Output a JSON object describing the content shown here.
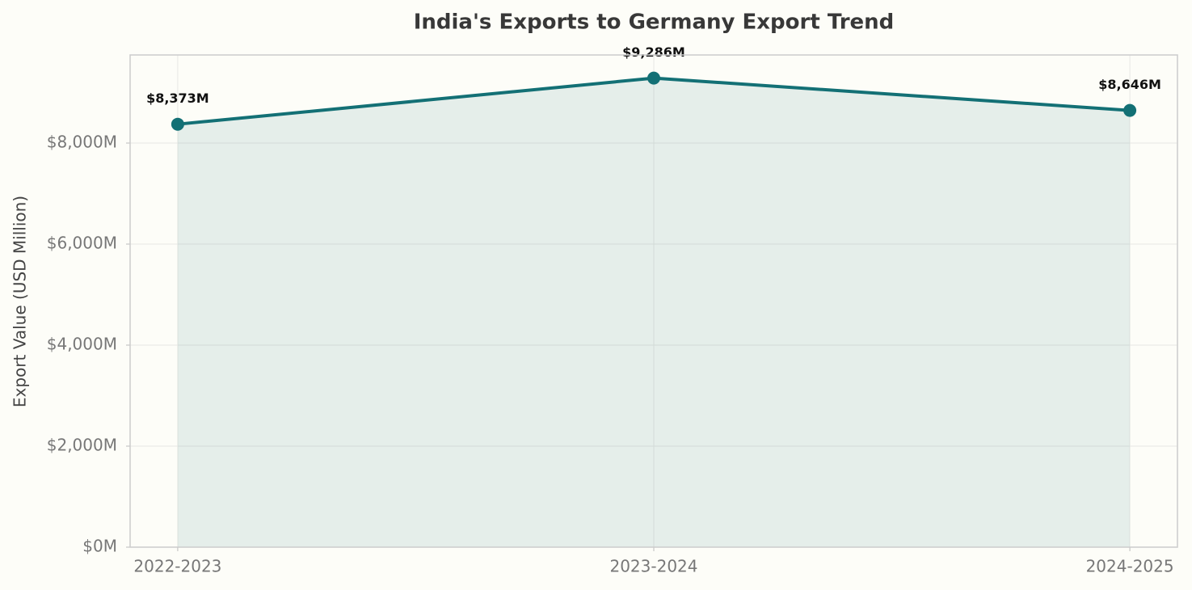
{
  "chart_data": {
    "type": "line",
    "title": "India's Exports to Germany Export Trend",
    "y_label": "Export Value (USD Million)",
    "categories": [
      "2022-2023",
      "2023-2024",
      "2024-2025"
    ],
    "series": [
      {
        "name": "India's Exports to Germany",
        "color": "#137075",
        "values": [
          8373,
          9286,
          8646
        ],
        "value_labels": [
          "$8,373M",
          "$9,286M",
          "$8,646M"
        ]
      }
    ],
    "ylim": [
      0,
      9744
    ],
    "yticks": [
      {
        "value": 0,
        "label": "$0M"
      },
      {
        "value": 2000,
        "label": "$2,000M"
      },
      {
        "value": 4000,
        "label": "$4,000M"
      },
      {
        "value": 6000,
        "label": "$6,000M"
      },
      {
        "value": 8000,
        "label": "$8,000M"
      }
    ],
    "grid": true,
    "area_fill": true
  }
}
